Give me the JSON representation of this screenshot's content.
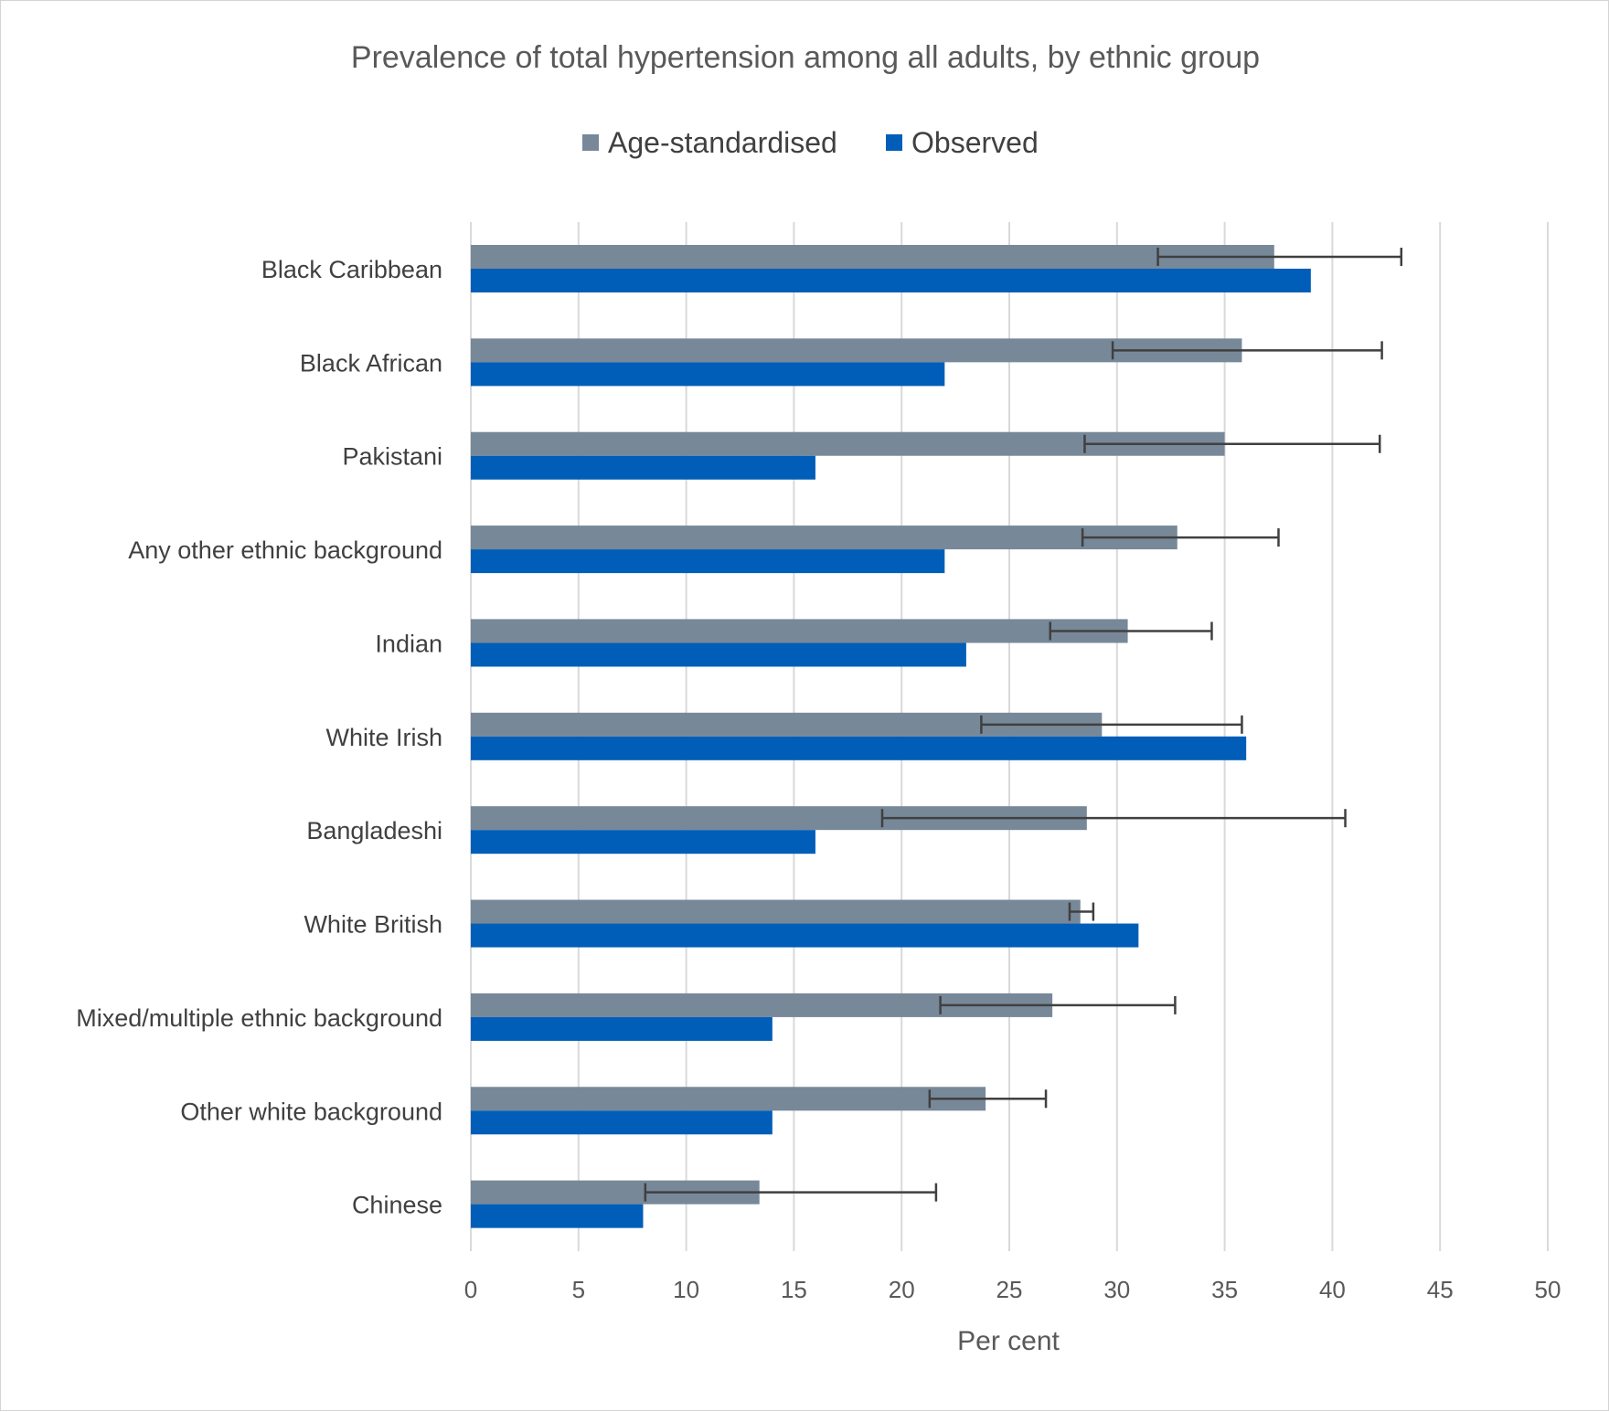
{
  "chart_data": {
    "type": "bar",
    "orientation": "horizontal",
    "title": "Prevalence of total hypertension among all adults, by ethnic group",
    "xlabel": "Per cent",
    "ylabel": "",
    "xlim": [
      0,
      50
    ],
    "x_ticks": [
      "0",
      "5",
      "10",
      "15",
      "20",
      "25",
      "30",
      "35",
      "40",
      "45",
      "50"
    ],
    "grid": true,
    "legend_position": "top",
    "categories": [
      "Black Caribbean",
      "Black African",
      "Pakistani",
      "Any other ethnic background",
      "Indian",
      "White Irish",
      "Bangladeshi",
      "White British",
      "Mixed/multiple ethnic background",
      "Other white background",
      "Chinese"
    ],
    "series": [
      {
        "name": "Age-standardised",
        "color": "#778899",
        "values": [
          37.3,
          35.8,
          35.0,
          32.8,
          30.5,
          29.3,
          28.6,
          28.3,
          27.0,
          23.9,
          13.4
        ],
        "error_low": [
          31.9,
          29.8,
          28.5,
          28.4,
          26.9,
          23.7,
          19.1,
          27.8,
          21.8,
          21.3,
          8.1
        ],
        "error_high": [
          43.2,
          42.3,
          42.2,
          37.5,
          34.4,
          35.8,
          40.6,
          28.9,
          32.7,
          26.7,
          21.6
        ]
      },
      {
        "name": "Observed",
        "color": "#005EB8",
        "values": [
          39,
          22,
          16,
          22,
          23,
          36,
          16,
          31,
          14,
          14,
          8
        ]
      }
    ]
  }
}
